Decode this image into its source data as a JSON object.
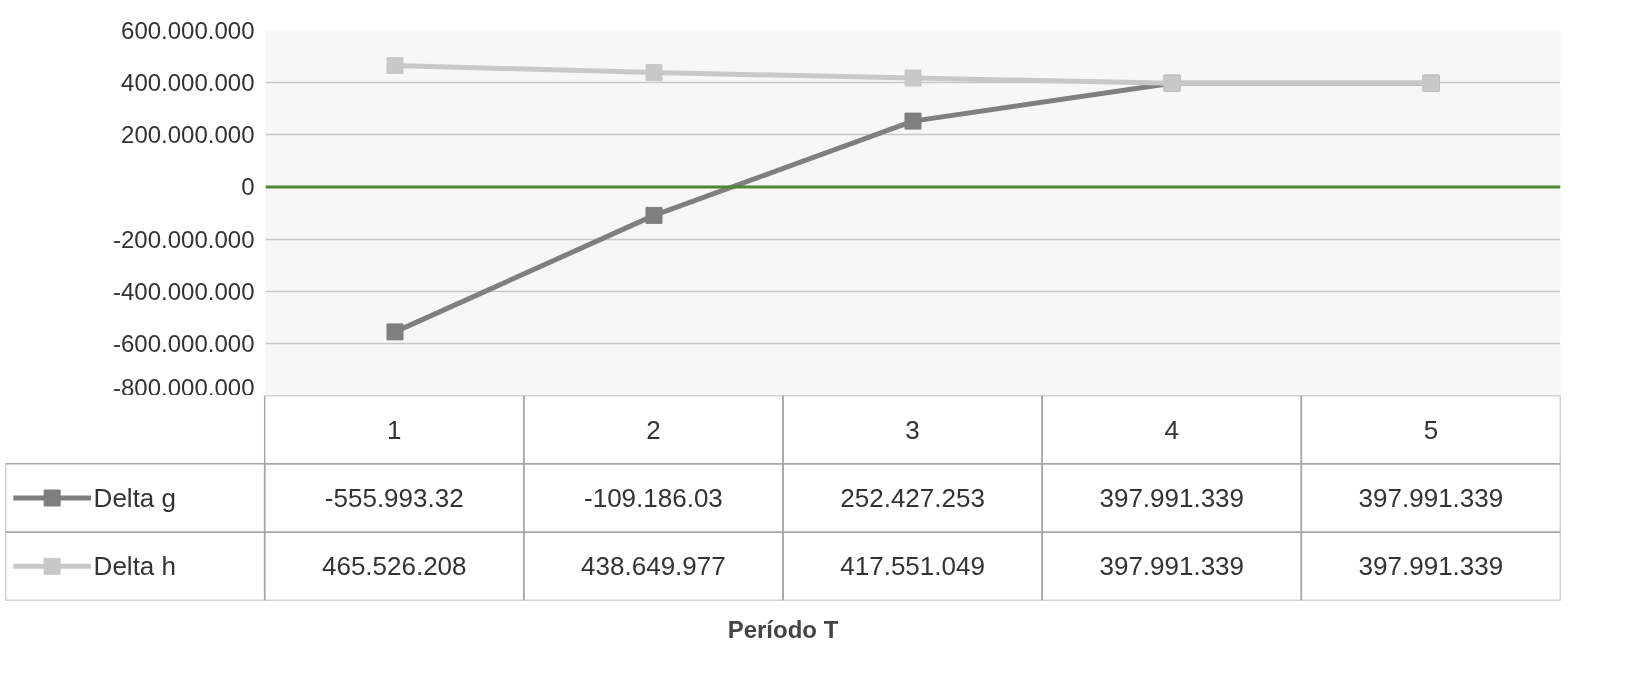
{
  "chart_data": {
    "type": "line",
    "annotations": [
      "Período T"
    ],
    "legend": "bottom left",
    "categories": [
      "1",
      "2",
      "3",
      "4",
      "5"
    ],
    "series": [
      {
        "name": "Delta g",
        "color": "#7f7f7f",
        "values": [
          -555993320,
          -109186030,
          252427253,
          397991339,
          397991339
        ],
        "value_labels": [
          "-555.993.32",
          "-109.186.03",
          "252.427.253",
          "397.991.339",
          "397.991.339"
        ]
      },
      {
        "name": "Delta h",
        "color": "#c8c8c8",
        "values": [
          465526208,
          438649977,
          417551049,
          397991339,
          397991339
        ],
        "value_labels": [
          "465.526.208",
          "438.649.977",
          "417.551.049",
          "397.991.339",
          "397.991.339"
        ]
      }
    ],
    "ylim": [
      -800000000,
      600000000
    ],
    "yticks": [
      {
        "value": 600000000,
        "label": "600.000.000"
      },
      {
        "value": 400000000,
        "label": "400.000.000"
      },
      {
        "value": 200000000,
        "label": "200.000.000"
      },
      {
        "value": 0,
        "label": "0"
      },
      {
        "value": -200000000,
        "label": "-200.000.000"
      },
      {
        "value": -400000000,
        "label": "-400.000.000"
      },
      {
        "value": -600000000,
        "label": "-600.000.000"
      },
      {
        "value": -800000000,
        "label": "-800.000.000"
      }
    ],
    "ref_lines": [
      {
        "axis": "y",
        "value": 0,
        "color": "#4e8a2e"
      }
    ],
    "grid": "y",
    "marker": "square",
    "line_style": "solid"
  }
}
